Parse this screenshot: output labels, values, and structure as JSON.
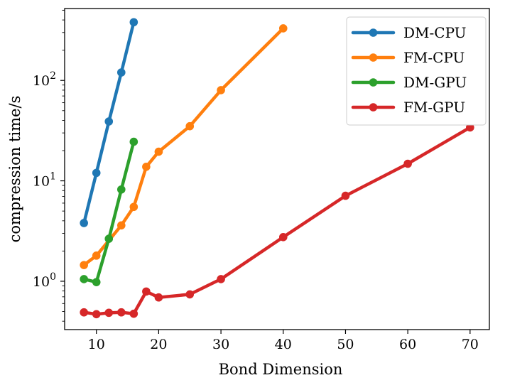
{
  "chart_data": {
    "type": "line",
    "title": "",
    "xlabel": "Bond Dimension",
    "ylabel": "compression time/s",
    "yscale": "log",
    "xlim": [
      4.9,
      73.1
    ],
    "ylim": [
      0.33,
      520
    ],
    "x_ticks": [
      {
        "value": 10,
        "label": "10"
      },
      {
        "value": 20,
        "label": "20"
      },
      {
        "value": 30,
        "label": "30"
      },
      {
        "value": 40,
        "label": "40"
      },
      {
        "value": 50,
        "label": "50"
      },
      {
        "value": 60,
        "label": "60"
      },
      {
        "value": 70,
        "label": "70"
      }
    ],
    "y_ticks": [
      {
        "value": 1,
        "base": "10",
        "exp": "0"
      },
      {
        "value": 10,
        "base": "10",
        "exp": "1"
      },
      {
        "value": 100,
        "base": "10",
        "exp": "2"
      }
    ],
    "legend_position": "top-right",
    "series": [
      {
        "name": "DM-CPU",
        "color": "#1f77b4",
        "x": [
          8,
          10,
          12,
          14,
          16
        ],
        "y": [
          3.8,
          12,
          39,
          120,
          380
        ]
      },
      {
        "name": "FM-CPU",
        "color": "#ff7f0e",
        "x": [
          8,
          10,
          14,
          16,
          18,
          20,
          25,
          30,
          40
        ],
        "y": [
          1.45,
          1.8,
          3.6,
          5.5,
          13.8,
          19.5,
          35,
          80,
          330
        ]
      },
      {
        "name": "DM-GPU",
        "color": "#2ca02c",
        "x": [
          8,
          10,
          12,
          14,
          16
        ],
        "y": [
          1.05,
          0.98,
          2.65,
          8.2,
          24.5
        ]
      },
      {
        "name": "FM-GPU",
        "color": "#d62728",
        "x": [
          8,
          10,
          12,
          14,
          16,
          18,
          20,
          25,
          30,
          40,
          50,
          60,
          70
        ],
        "y": [
          0.49,
          0.47,
          0.485,
          0.49,
          0.475,
          0.79,
          0.69,
          0.74,
          1.05,
          2.75,
          7.1,
          14.8,
          34
        ]
      }
    ]
  }
}
